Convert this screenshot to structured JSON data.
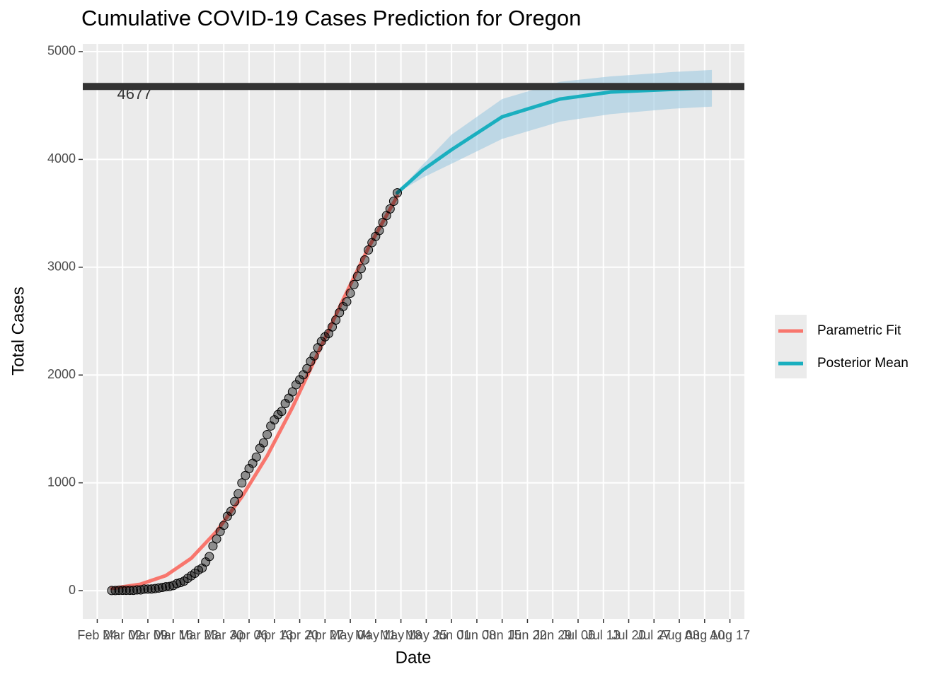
{
  "chart_data": {
    "type": "line",
    "title": "Cumulative COVID-19 Cases Prediction for Oregon",
    "x_label": "Date",
    "y_label": "Total Cases",
    "xlim": [
      "Feb 20",
      "Aug 21"
    ],
    "xticks": [
      "Feb 24",
      "Mar 02",
      "Mar 09",
      "Mar 16",
      "Mar 23",
      "Mar 30",
      "Apr 06",
      "Apr 13",
      "Apr 20",
      "Apr 27",
      "May 04",
      "May 11",
      "May 18",
      "May 25",
      "Jun 01",
      "Jun 08",
      "Jun 15",
      "Jun 22",
      "Jun 29",
      "Jul 06",
      "Jul 13",
      "Jul 20",
      "Jul 27",
      "Aug 03",
      "Aug 10",
      "Aug 17"
    ],
    "ylim": [
      -262,
      5072
    ],
    "yticks": [
      0,
      1000,
      2000,
      3000,
      4000,
      5000
    ],
    "grid": true,
    "legend": "right",
    "observed": {
      "color": "#000000",
      "x": [
        "Feb 28",
        "Feb 29",
        "Mar 01",
        "Mar 02",
        "Mar 03",
        "Mar 04",
        "Mar 05",
        "Mar 06",
        "Mar 07",
        "Mar 08",
        "Mar 09",
        "Mar 10",
        "Mar 11",
        "Mar 12",
        "Mar 13",
        "Mar 14",
        "Mar 15",
        "Mar 16",
        "Mar 17",
        "Mar 18",
        "Mar 19",
        "Mar 20",
        "Mar 21",
        "Mar 22",
        "Mar 23",
        "Mar 24",
        "Mar 25",
        "Mar 26",
        "Mar 27",
        "Mar 28",
        "Mar 29",
        "Mar 30",
        "Mar 31",
        "Apr 01",
        "Apr 02",
        "Apr 03",
        "Apr 04",
        "Apr 05",
        "Apr 06",
        "Apr 07",
        "Apr 08",
        "Apr 09",
        "Apr 10",
        "Apr 11",
        "Apr 12",
        "Apr 13",
        "Apr 14",
        "Apr 15",
        "Apr 16",
        "Apr 17",
        "Apr 18",
        "Apr 19",
        "Apr 20",
        "Apr 21",
        "Apr 22",
        "Apr 23",
        "Apr 24",
        "Apr 25",
        "Apr 26",
        "Apr 27",
        "Apr 28",
        "Apr 29",
        "Apr 30",
        "May 01",
        "May 02",
        "May 03",
        "May 04",
        "May 05",
        "May 06",
        "May 07",
        "May 08",
        "May 09",
        "May 10",
        "May 11",
        "May 12",
        "May 13",
        "May 14",
        "May 15",
        "May 16",
        "May 17"
      ],
      "values": [
        1,
        1,
        3,
        3,
        3,
        3,
        3,
        7,
        7,
        14,
        14,
        15,
        19,
        24,
        30,
        36,
        39,
        47,
        65,
        75,
        88,
        114,
        137,
        161,
        191,
        209,
        266,
        316,
        414,
        479,
        548,
        606,
        690,
        736,
        826,
        899,
        999,
        1068,
        1132,
        1181,
        1239,
        1321,
        1371,
        1447,
        1527,
        1584,
        1633,
        1663,
        1736,
        1785,
        1844,
        1910,
        1956,
        2002,
        2059,
        2127,
        2177,
        2253,
        2311,
        2354,
        2385,
        2446,
        2510,
        2579,
        2635,
        2680,
        2759,
        2839,
        2916,
        2987,
        3068,
        3160,
        3228,
        3286,
        3340,
        3416,
        3479,
        3541,
        3612,
        3690
      ]
    },
    "series": [
      {
        "name": "Parametric Fit",
        "color": "#F8766D",
        "x": [
          "Feb 28",
          "Mar 07",
          "Mar 14",
          "Mar 21",
          "Mar 28",
          "Apr 04",
          "Apr 11",
          "Apr 18",
          "Apr 25",
          "May 02",
          "May 09",
          "May 17"
        ],
        "values": [
          20,
          60,
          140,
          300,
          550,
          870,
          1250,
          1700,
          2200,
          2700,
          3180,
          3660
        ]
      },
      {
        "name": "Posterior Mean",
        "color": "#1AAFBF",
        "band_color": "#9ECAE1",
        "x": [
          "May 17",
          "May 24",
          "Jun 01",
          "Jun 15",
          "Jul 01",
          "Jul 15",
          "Aug 01",
          "Aug 12"
        ],
        "values": [
          3690,
          3900,
          4090,
          4395,
          4560,
          4625,
          4650,
          4665
        ],
        "lower": [
          3690,
          3830,
          3960,
          4190,
          4350,
          4420,
          4470,
          4490
        ],
        "upper": [
          3690,
          3950,
          4230,
          4560,
          4720,
          4770,
          4810,
          4830
        ]
      }
    ],
    "hline": {
      "value": 4677,
      "color": "#333333"
    }
  }
}
